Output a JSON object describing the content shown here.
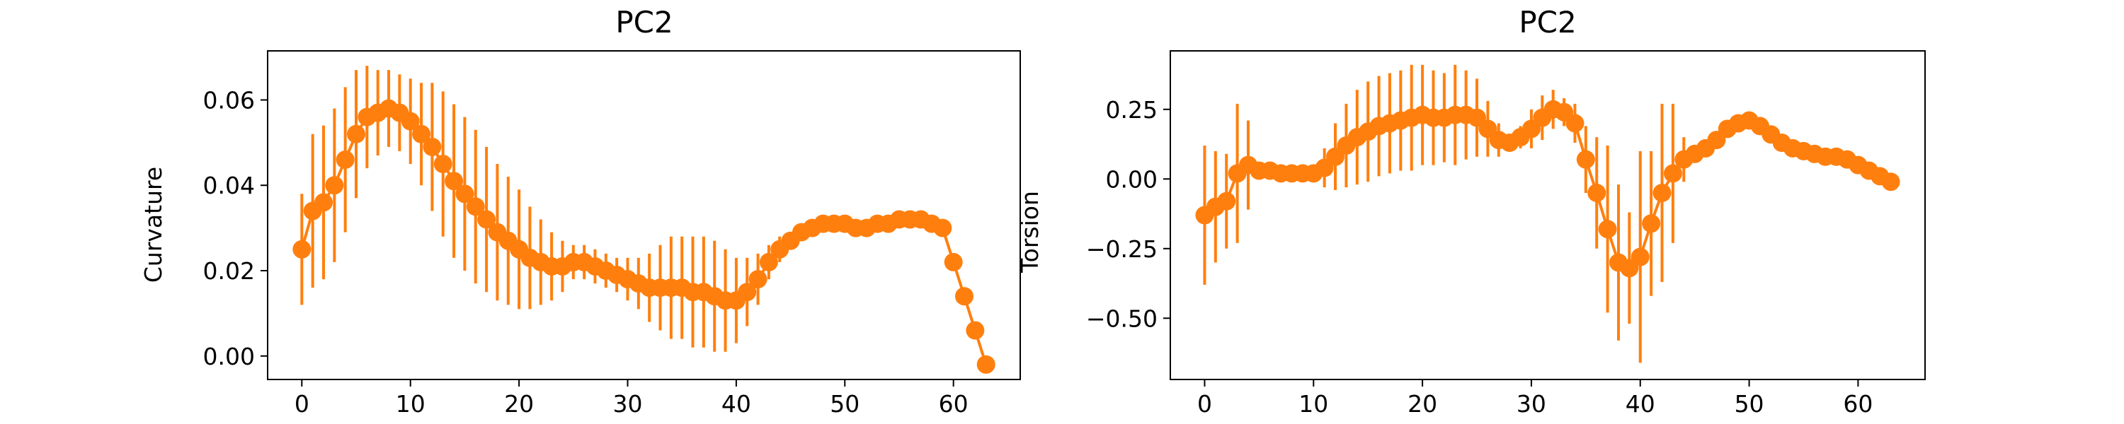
{
  "chart_data": [
    {
      "type": "line",
      "title": "PC2",
      "xlabel": "",
      "ylabel": "Curvature",
      "xlim": [
        -3.15,
        66.15
      ],
      "ylim": [
        -0.0055,
        0.0715
      ],
      "grid": false,
      "color": "#ff7f0e",
      "xticks": [
        0,
        10,
        20,
        30,
        40,
        50,
        60
      ],
      "yticks": [
        0.0,
        0.02,
        0.04,
        0.06
      ],
      "ytick_labels": [
        "0.00",
        "0.02",
        "0.04",
        "0.06"
      ],
      "x": [
        0,
        1,
        2,
        3,
        4,
        5,
        6,
        7,
        8,
        9,
        10,
        11,
        12,
        13,
        14,
        15,
        16,
        17,
        18,
        19,
        20,
        21,
        22,
        23,
        24,
        25,
        26,
        27,
        28,
        29,
        30,
        31,
        32,
        33,
        34,
        35,
        36,
        37,
        38,
        39,
        40,
        41,
        42,
        43,
        44,
        45,
        46,
        47,
        48,
        49,
        50,
        51,
        52,
        53,
        54,
        55,
        56,
        57,
        58,
        59,
        60,
        61,
        62,
        63
      ],
      "y": [
        0.025,
        0.034,
        0.036,
        0.04,
        0.046,
        0.052,
        0.056,
        0.057,
        0.058,
        0.057,
        0.055,
        0.052,
        0.049,
        0.045,
        0.041,
        0.038,
        0.035,
        0.032,
        0.029,
        0.027,
        0.025,
        0.023,
        0.022,
        0.021,
        0.021,
        0.022,
        0.022,
        0.021,
        0.02,
        0.019,
        0.018,
        0.017,
        0.016,
        0.016,
        0.016,
        0.016,
        0.015,
        0.015,
        0.014,
        0.013,
        0.013,
        0.015,
        0.018,
        0.022,
        0.025,
        0.027,
        0.029,
        0.03,
        0.031,
        0.031,
        0.031,
        0.03,
        0.03,
        0.031,
        0.031,
        0.032,
        0.032,
        0.032,
        0.031,
        0.03,
        0.022,
        0.014,
        0.006,
        -0.002
      ],
      "err": [
        0.013,
        0.018,
        0.018,
        0.018,
        0.017,
        0.015,
        0.012,
        0.01,
        0.009,
        0.009,
        0.01,
        0.012,
        0.015,
        0.017,
        0.018,
        0.018,
        0.018,
        0.017,
        0.016,
        0.015,
        0.014,
        0.012,
        0.01,
        0.008,
        0.006,
        0.004,
        0.004,
        0.004,
        0.004,
        0.004,
        0.005,
        0.006,
        0.008,
        0.01,
        0.012,
        0.012,
        0.013,
        0.013,
        0.013,
        0.012,
        0.01,
        0.008,
        0.006,
        0.004,
        0.003,
        0.002,
        0.002,
        0.002,
        0.002,
        0.002,
        0.002,
        0.002,
        0.002,
        0.002,
        0.002,
        0.002,
        0.002,
        0.002,
        0.002,
        0.002,
        0.0,
        0.0,
        0.0,
        0.0
      ]
    },
    {
      "type": "line",
      "title": "PC2",
      "xlabel": "",
      "ylabel": "Torsion",
      "xlim": [
        -3.15,
        66.15
      ],
      "ylim": [
        -0.72,
        0.46
      ],
      "grid": false,
      "color": "#ff7f0e",
      "xticks": [
        0,
        10,
        20,
        30,
        40,
        50,
        60
      ],
      "yticks": [
        -0.5,
        -0.25,
        0.0,
        0.25
      ],
      "ytick_labels": [
        "−0.50",
        "−0.25",
        "0.00",
        "0.25"
      ],
      "x": [
        0,
        1,
        2,
        3,
        4,
        5,
        6,
        7,
        8,
        9,
        10,
        11,
        12,
        13,
        14,
        15,
        16,
        17,
        18,
        19,
        20,
        21,
        22,
        23,
        24,
        25,
        26,
        27,
        28,
        29,
        30,
        31,
        32,
        33,
        34,
        35,
        36,
        37,
        38,
        39,
        40,
        41,
        42,
        43,
        44,
        45,
        46,
        47,
        48,
        49,
        50,
        51,
        52,
        53,
        54,
        55,
        56,
        57,
        58,
        59,
        60,
        61,
        62,
        63
      ],
      "y": [
        -0.13,
        -0.1,
        -0.08,
        0.02,
        0.05,
        0.03,
        0.03,
        0.02,
        0.02,
        0.02,
        0.02,
        0.04,
        0.08,
        0.12,
        0.15,
        0.17,
        0.19,
        0.2,
        0.21,
        0.22,
        0.23,
        0.22,
        0.22,
        0.23,
        0.23,
        0.22,
        0.18,
        0.14,
        0.13,
        0.15,
        0.18,
        0.22,
        0.25,
        0.24,
        0.2,
        0.07,
        -0.05,
        -0.18,
        -0.3,
        -0.32,
        -0.28,
        -0.16,
        -0.05,
        0.02,
        0.07,
        0.09,
        0.11,
        0.14,
        0.18,
        0.2,
        0.21,
        0.19,
        0.16,
        0.13,
        0.11,
        0.1,
        0.09,
        0.08,
        0.08,
        0.07,
        0.05,
        0.03,
        0.01,
        -0.01
      ],
      "err": [
        0.25,
        0.2,
        0.17,
        0.25,
        0.16,
        0.03,
        0.02,
        0.02,
        0.02,
        0.02,
        0.03,
        0.07,
        0.12,
        0.15,
        0.17,
        0.18,
        0.18,
        0.18,
        0.18,
        0.19,
        0.18,
        0.17,
        0.16,
        0.18,
        0.16,
        0.14,
        0.1,
        0.06,
        0.03,
        0.04,
        0.07,
        0.08,
        0.07,
        0.05,
        0.07,
        0.12,
        0.2,
        0.3,
        0.28,
        0.2,
        0.38,
        0.26,
        0.32,
        0.25,
        0.08,
        0.02,
        0.02,
        0.02,
        0.02,
        0.02,
        0.02,
        0.02,
        0.02,
        0.02,
        0.02,
        0.02,
        0.02,
        0.02,
        0.02,
        0.02,
        0.02,
        0.02,
        0.02,
        0.02
      ]
    }
  ]
}
